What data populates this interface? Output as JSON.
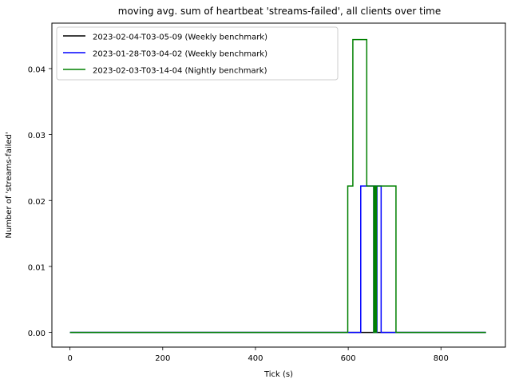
{
  "chart_data": {
    "type": "line",
    "step": "post",
    "title": "moving avg. sum of heartbeat 'streams-failed', all clients over time",
    "xlabel": "Tick (s)",
    "ylabel": "Number of 'streams-failed'",
    "xlim": [
      -39,
      939
    ],
    "ylim": [
      -0.00223,
      0.04689
    ],
    "xticks": [
      0,
      200,
      400,
      600,
      800
    ],
    "xtick_labels": [
      "0",
      "200",
      "400",
      "600",
      "800"
    ],
    "yticks": [
      0.0,
      0.01,
      0.02,
      0.03,
      0.04
    ],
    "ytick_labels": [
      "0.00",
      "0.01",
      "0.02",
      "0.03",
      "0.04"
    ],
    "grid": false,
    "legend_position": "upper-left",
    "series": [
      {
        "name": "2023-02-04-T03-05-09 (Weekly benchmark)",
        "color": "#000000",
        "x": [
          0,
          897
        ],
        "y": [
          0,
          0
        ]
      },
      {
        "name": "2023-01-28-T03-04-02 (Weekly benchmark)",
        "color": "#0000ff",
        "x": [
          0,
          627,
          655,
          657,
          659,
          662,
          671,
          673,
          897
        ],
        "y": [
          0,
          0.0222,
          0,
          0.0222,
          0,
          0.0222,
          0,
          0,
          0
        ]
      },
      {
        "name": "2023-02-03-T03-14-04 (Nightly benchmark)",
        "color": "#008000",
        "x": [
          0,
          599,
          610,
          640,
          655,
          657,
          659,
          661,
          703,
          897
        ],
        "y": [
          0,
          0.0222,
          0.0444,
          0.0222,
          0,
          0.0222,
          0,
          0.0222,
          0,
          0
        ]
      }
    ]
  }
}
